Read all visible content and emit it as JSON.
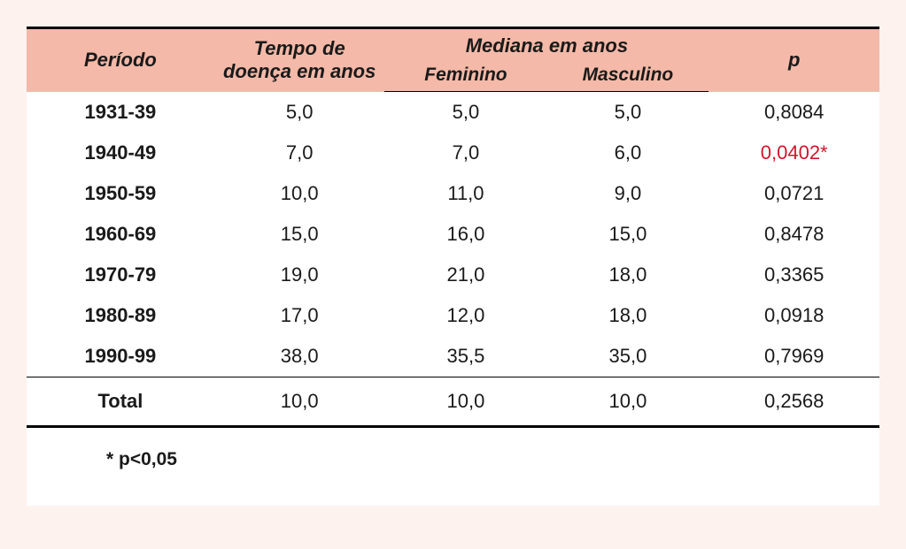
{
  "colors": {
    "page_bg": "#fdf2ee",
    "header_bg": "#f4b9a8",
    "body_bg": "#ffffff",
    "text": "#1a1a1a",
    "rule": "#000000",
    "significant": "#d1152a"
  },
  "typography": {
    "font_family": "Arial",
    "header_fontsize_pt": 16,
    "body_fontsize_pt": 16,
    "header_style": "bold italic",
    "period_style": "bold"
  },
  "table": {
    "type": "table",
    "columns": {
      "period": "Período",
      "disease_time": "Tempo de doença em anos",
      "median_span": "Mediana em anos",
      "median_female": "Feminino",
      "median_male": "Masculino",
      "p": "p"
    },
    "column_widths_pct": [
      22,
      20,
      19,
      19,
      20
    ],
    "rows": [
      {
        "period": "1931-39",
        "disease_time": "5,0",
        "female": "5,0",
        "male": "5,0",
        "p": "0,8084",
        "sig": false
      },
      {
        "period": "1940-49",
        "disease_time": "7,0",
        "female": "7,0",
        "male": "6,0",
        "p": "0,0402*",
        "sig": true
      },
      {
        "period": "1950-59",
        "disease_time": "10,0",
        "female": "11,0",
        "male": "9,0",
        "p": "0,0721",
        "sig": false
      },
      {
        "period": "1960-69",
        "disease_time": "15,0",
        "female": "16,0",
        "male": "15,0",
        "p": "0,8478",
        "sig": false
      },
      {
        "period": "1970-79",
        "disease_time": "19,0",
        "female": "21,0",
        "male": "18,0",
        "p": "0,3365",
        "sig": false
      },
      {
        "period": "1980-89",
        "disease_time": "17,0",
        "female": "12,0",
        "male": "18,0",
        "p": "0,0918",
        "sig": false
      },
      {
        "period": "1990-99",
        "disease_time": "38,0",
        "female": "35,5",
        "male": "35,0",
        "p": "0,7969",
        "sig": false
      }
    ],
    "total_row": {
      "period": "Total",
      "disease_time": "10,0",
      "female": "10,0",
      "male": "10,0",
      "p": "0,2568",
      "sig": false
    },
    "rules": {
      "top": "3px solid",
      "header_bottom": "1.5px solid",
      "before_total": "1.5px solid",
      "bottom": "3px solid"
    }
  },
  "footnote": "* p<0,05"
}
